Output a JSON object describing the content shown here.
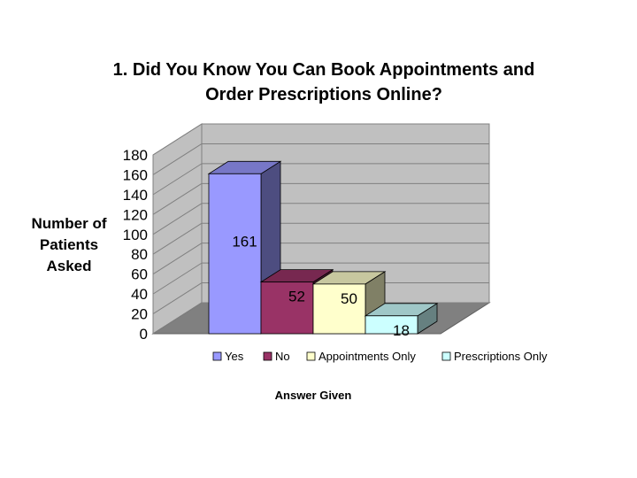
{
  "chart_data": {
    "type": "bar",
    "title": [
      "1. Did You Know You Can Book Appointments and",
      "Order Prescriptions Online?"
    ],
    "ylabel": [
      "Number of",
      "Patients",
      "Asked"
    ],
    "xlabel": "Answer Given",
    "ylim": [
      0,
      180
    ],
    "yticks": [
      0,
      20,
      40,
      60,
      80,
      100,
      120,
      140,
      160,
      180
    ],
    "categories": [
      "Yes",
      "No",
      "Appointments Only",
      "Prescriptions Only"
    ],
    "values": [
      161,
      52,
      50,
      18
    ],
    "colors": [
      "#9999ff",
      "#993366",
      "#ffffcc",
      "#ccffff"
    ],
    "legend_position": "bottom",
    "three_d": true
  }
}
